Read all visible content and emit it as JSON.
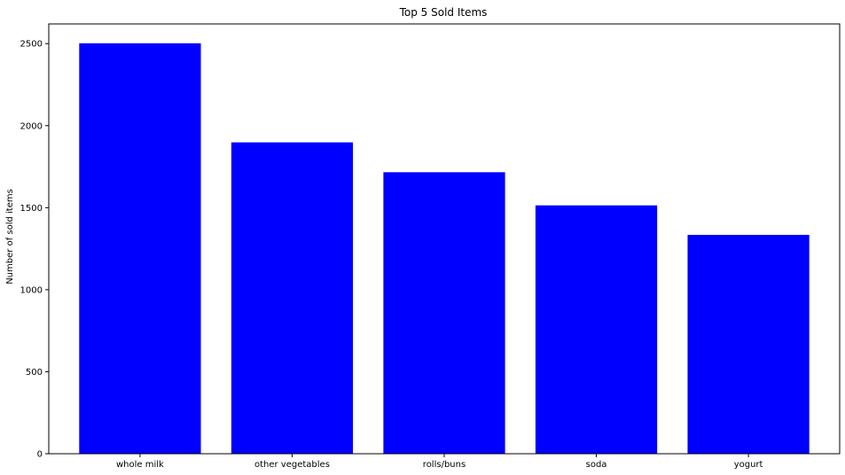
{
  "chart_data": {
    "type": "bar",
    "title": "Top 5 Sold Items",
    "xlabel": "",
    "ylabel": "Number of sold items",
    "categories": [
      "whole milk",
      "other vegetables",
      "rolls/buns",
      "soda",
      "yogurt"
    ],
    "values": [
      2502,
      1898,
      1716,
      1514,
      1334
    ],
    "ylim": [
      0,
      2620
    ],
    "yticks": [
      0,
      500,
      1000,
      1500,
      2000,
      2500
    ],
    "bar_color": "#0000ff",
    "grid": false
  }
}
